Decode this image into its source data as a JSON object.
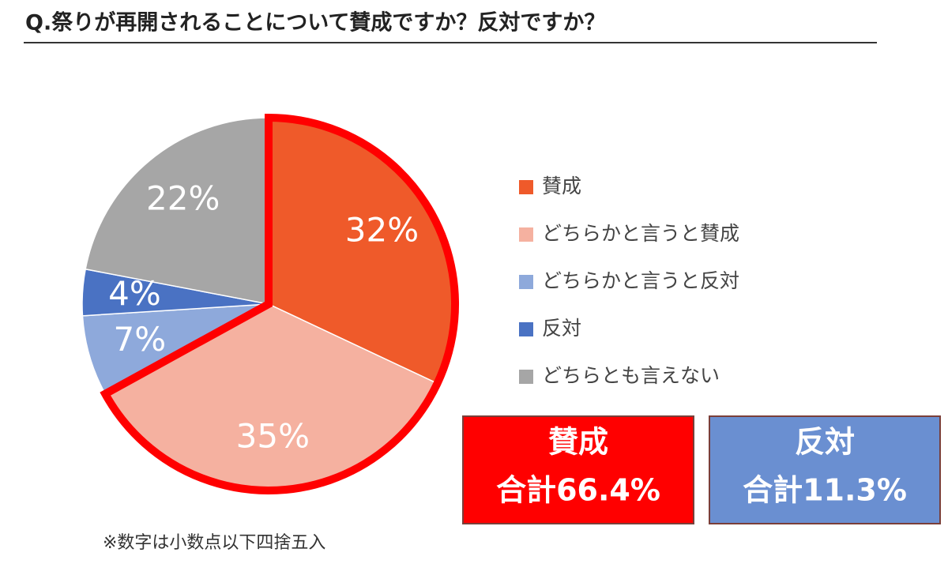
{
  "chart_data": {
    "type": "pie",
    "title": "Q.祭りが再開されることについて賛成ですか？反対ですか？",
    "categories": [
      "賛成",
      "どちらかと言うと賛成",
      "どちらかと言うと反対",
      "反対",
      "どちらとも言えない"
    ],
    "values": [
      32,
      35,
      7,
      4,
      22
    ],
    "value_labels": [
      "32%",
      "35%",
      "7%",
      "4%",
      "22%"
    ],
    "colors": [
      "#ef5a2a",
      "#f5b1a0",
      "#8ea9db",
      "#4a72c3",
      "#a6a6a6"
    ],
    "annotations": [
      {
        "title": "賛成",
        "text": "合計66.4%",
        "color": "#ff0000"
      },
      {
        "title": "反対",
        "text": "合計11.3%",
        "color": "#6a8fd1"
      }
    ],
    "note": "※数字は小数点以下四捨五入"
  }
}
